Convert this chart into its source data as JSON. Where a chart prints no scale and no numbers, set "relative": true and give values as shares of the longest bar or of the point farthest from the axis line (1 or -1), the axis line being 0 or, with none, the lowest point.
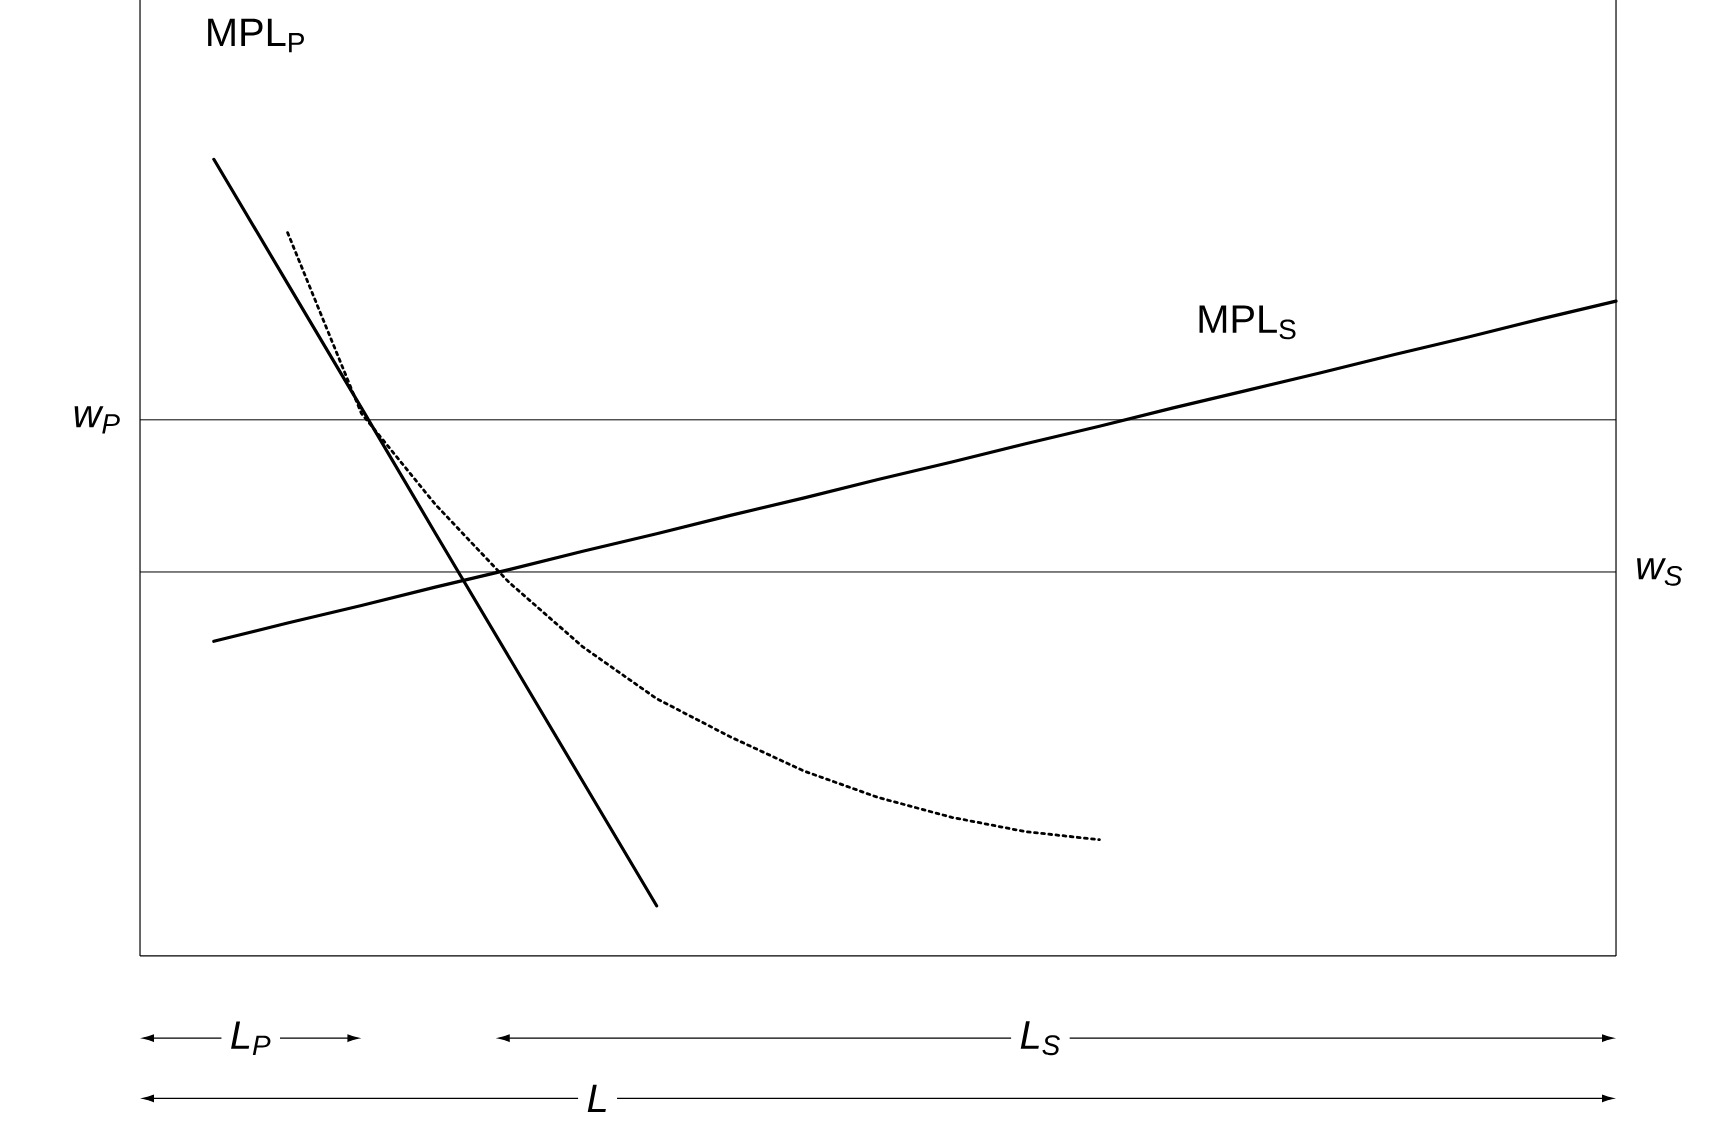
{
  "chart_data": {
    "type": "line",
    "relative": true,
    "marker": "none",
    "categories": [
      null,
      null,
      null,
      null,
      null,
      null,
      null,
      null,
      null,
      null,
      null,
      null,
      null,
      null,
      null,
      null,
      null,
      null,
      null,
      null,
      null
    ],
    "series": [
      {
        "name": "MPL$_{P}$",
        "color": "#000000",
        "line_style": "solid",
        "values": [
          null,
          1.0,
          0.844,
          0.688,
          0.531,
          0.375,
          0.219,
          0.063,
          null,
          null,
          null,
          null,
          null,
          null,
          null,
          null,
          null,
          null,
          null,
          null,
          null
        ]
      },
      {
        "name": "MPL$_{S}$",
        "color": "#000000",
        "line_style": "solid",
        "values": [
          null,
          0.395,
          0.418,
          0.44,
          0.463,
          0.485,
          0.508,
          0.53,
          0.553,
          0.575,
          0.598,
          0.62,
          0.643,
          0.665,
          0.688,
          0.71,
          0.732,
          0.755,
          0.777,
          0.8,
          0.822
        ]
      },
      {
        "color": "#000000",
        "line_style": "dotted",
        "values": [
          null,
          null,
          0.908,
          0.681,
          0.567,
          0.469,
          0.388,
          0.323,
          0.275,
          0.232,
          0.199,
          0.174,
          0.156,
          0.146,
          null,
          null,
          null,
          null,
          null,
          null,
          null
        ]
      }
    ],
    "ref_lines": [
      {
        "axis": "y",
        "value": 0.673,
        "label": "w$_{P}$"
      },
      {
        "axis": "y",
        "value": 0.482,
        "label": "w$_{S}$"
      }
    ],
    "annotations": [
      "L$_{P}$",
      "L$_{S}$",
      "L"
    ]
  }
}
